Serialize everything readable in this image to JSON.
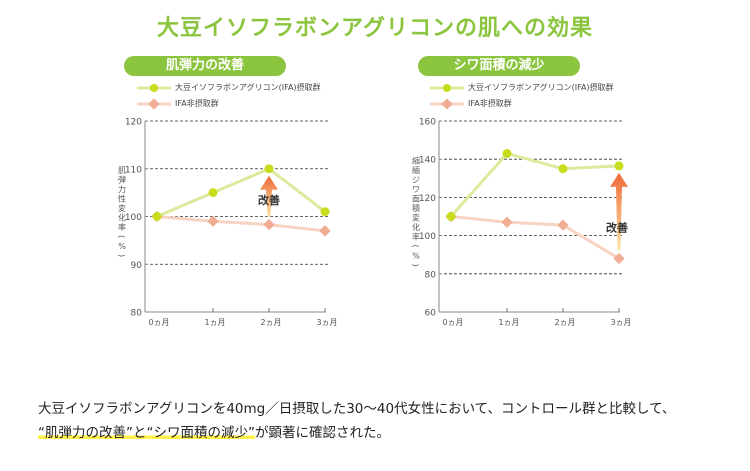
{
  "title": "大豆イソフラボンアグリコンの肌への効果",
  "colors": {
    "accent": "#8bc53f",
    "ifa_line": "#dcea9c",
    "ifa_marker": "#c8dc1e",
    "control_line": "#f8d3c2",
    "control_marker": "#f0ad94",
    "arrow_top": "#ef6a3a",
    "arrow_bottom": "#f9d98c"
  },
  "legend": {
    "series_a": "大豆イソフラボンアグリコン(IFA)摂取群",
    "series_b": "IFA非摂取群"
  },
  "chart_data": [
    {
      "type": "line",
      "title": "肌弾力の改善",
      "ylabel": "肌弾力性変化率(%)",
      "xlabel": "",
      "categories": [
        "0ヵ月",
        "1ヵ月",
        "2ヵ月",
        "3ヵ月"
      ],
      "ylim": [
        80,
        120
      ],
      "yticks": [
        80,
        90,
        100,
        110,
        120
      ],
      "grid": true,
      "legend_position": "top-left",
      "series": [
        {
          "name": "大豆イソフラボンアグリコン(IFA)摂取群",
          "values": [
            100,
            105,
            110,
            101
          ]
        },
        {
          "name": "IFA非摂取群",
          "values": [
            100,
            99,
            98.3,
            97
          ]
        }
      ],
      "annotation": {
        "text": "改善",
        "category_index": 2
      }
    },
    {
      "type": "line",
      "title": "シワ面積の減少",
      "ylabel": "縮緬ジワ面積変化率(%)",
      "xlabel": "",
      "categories": [
        "0ヵ月",
        "1ヵ月",
        "2ヵ月",
        "3ヵ月"
      ],
      "ylim": [
        60,
        160
      ],
      "yticks": [
        60,
        80,
        100,
        120,
        140,
        160
      ],
      "grid": true,
      "legend_position": "top-left",
      "series": [
        {
          "name": "大豆イソフラボンアグリコン(IFA)摂取群",
          "values": [
            110,
            143,
            135,
            136.5
          ]
        },
        {
          "name": "IFA非摂取群",
          "values": [
            110,
            107,
            105.5,
            88
          ]
        }
      ],
      "annotation": {
        "text": "改善",
        "category_index": 3
      }
    }
  ],
  "description": {
    "line1": "大豆イソフラボンアグリコンを40mg／日摂取した30～40代女性において、コントロール群と比較して、",
    "highlight": "“肌弾力の改善”と“シワ面積の減少”",
    "line2_rest": "が顕著に確認された。"
  }
}
